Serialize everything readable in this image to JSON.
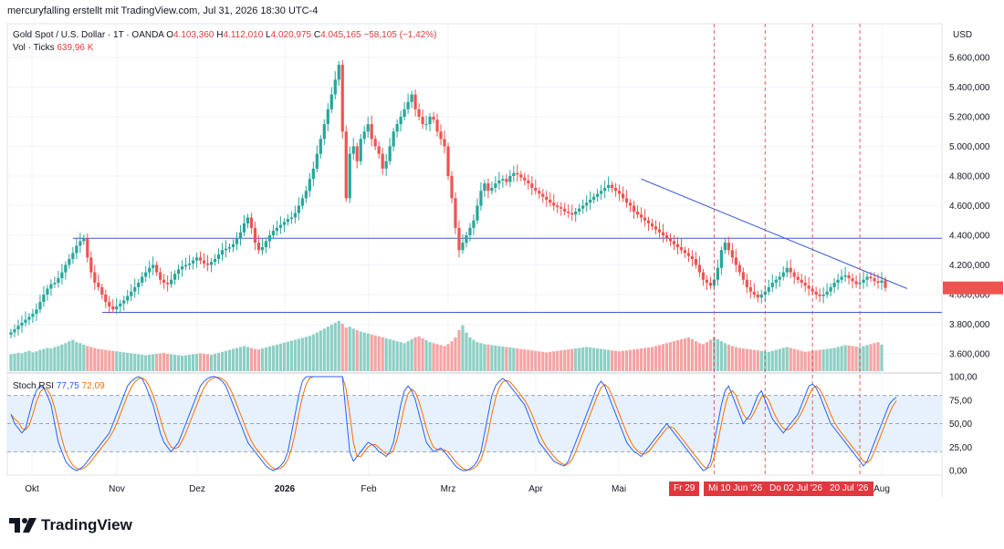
{
  "credit": "mercuryfalling erstellt mit TradingView.com, Jul 31, 2026 18:30 UTC-4",
  "header": {
    "symbol": "Gold Spot / U.S. Dollar · 1T · OANDA",
    "open_label": "O",
    "open": "4.103,360",
    "high_label": "H",
    "high": "4.112,010",
    "low_label": "L",
    "low": "4.020,975",
    "close_label": "C",
    "close": "4.045,165",
    "change": "−58,105 (−1,42%)",
    "vol_label": "Vol · Ticks",
    "vol_value": "639,96 K"
  },
  "rsi": {
    "label": "Stoch RSI",
    "k": "77,75",
    "d": "72,09",
    "axis": [
      "100,00",
      "75,00",
      "50,00",
      "25,00",
      "0,00"
    ]
  },
  "currency": "USD",
  "date_flags": [
    "Fr 29",
    "Mi 10 Jun '26",
    "Do 02 Jul '26",
    "20 Jul '26"
  ],
  "brand": "TradingView",
  "colors": {
    "up": "#26a69a",
    "down": "#ef5350",
    "up_vol": "#8ccfc4",
    "down_vol": "#f5a3a3",
    "k_line": "#2962ff",
    "d_line": "#ff6d00",
    "trend_line": "#3d5ccf",
    "rsi_band": "#e6f1fd",
    "cursor_line": "#e0383e"
  },
  "chart_data": {
    "type": "candlestick",
    "price_axis": [
      "5.600,000",
      "5.400,000",
      "5.200,000",
      "5.000,000",
      "4.800,000",
      "4.600,000",
      "4.400,000",
      "4.200,000",
      "4.000,000",
      "3.800,000",
      "3.600,000"
    ],
    "x_labels": [
      "Okt",
      "Nov",
      "Dez",
      "2026",
      "Feb",
      "Mrz",
      "Apr",
      "Mai",
      "Aug"
    ],
    "horizontal_levels": [
      4380,
      3880
    ],
    "trendline": {
      "from": {
        "i": 173,
        "price": 4780
      },
      "to": {
        "i": 246,
        "price": 4040
      }
    },
    "cursor_markers_i": [
      193,
      207,
      220,
      233
    ],
    "closes": [
      3745,
      3765,
      3790,
      3810,
      3830,
      3850,
      3870,
      3900,
      3950,
      4000,
      4040,
      4070,
      4080,
      4110,
      4150,
      4200,
      4240,
      4280,
      4330,
      4360,
      4380,
      4250,
      4150,
      4080,
      4050,
      4000,
      3950,
      3920,
      3900,
      3920,
      3940,
      3960,
      3990,
      4020,
      4050,
      4080,
      4120,
      4150,
      4180,
      4200,
      4150,
      4100,
      4080,
      4070,
      4100,
      4140,
      4170,
      4190,
      4200,
      4210,
      4230,
      4250,
      4230,
      4210,
      4200,
      4220,
      4240,
      4270,
      4300,
      4310,
      4320,
      4340,
      4380,
      4420,
      4480,
      4520,
      4450,
      4350,
      4300,
      4320,
      4360,
      4400,
      4430,
      4450,
      4470,
      4490,
      4510,
      4520,
      4550,
      4600,
      4650,
      4700,
      4780,
      4850,
      4950,
      5050,
      5150,
      5250,
      5350,
      5450,
      5550,
      5100,
      4650,
      4950,
      5000,
      4900,
      5050,
      5100,
      5150,
      5050,
      5000,
      4950,
      4850,
      4900,
      5000,
      5100,
      5150,
      5200,
      5250,
      5300,
      5350,
      5250,
      5200,
      5150,
      5150,
      5200,
      5180,
      5100,
      5050,
      5000,
      4800,
      4650,
      4450,
      4300,
      4350,
      4400,
      4450,
      4500,
      4600,
      4700,
      4750,
      4700,
      4720,
      4750,
      4770,
      4780,
      4760,
      4800,
      4820,
      4810,
      4790,
      4770,
      4750,
      4720,
      4700,
      4680,
      4660,
      4640,
      4620,
      4600,
      4590,
      4580,
      4560,
      4550,
      4540,
      4560,
      4580,
      4600,
      4620,
      4640,
      4660,
      4680,
      4700,
      4720,
      4740,
      4720,
      4700,
      4680,
      4650,
      4620,
      4600,
      4560,
      4540,
      4520,
      4500,
      4480,
      4460,
      4440,
      4420,
      4400,
      4380,
      4360,
      4340,
      4320,
      4300,
      4280,
      4260,
      4240,
      4200,
      4150,
      4100,
      4080,
      4060,
      4100,
      4180,
      4300,
      4350,
      4300,
      4250,
      4200,
      4150,
      4100,
      4050,
      4020,
      4000,
      3980,
      4000,
      4020,
      4050,
      4080,
      4100,
      4120,
      4150,
      4180,
      4150,
      4120,
      4100,
      4080,
      4060,
      4040,
      4020,
      4000,
      3990,
      4000,
      4020,
      4050,
      4080,
      4100,
      4120,
      4130,
      4110,
      4090,
      4070,
      4080,
      4100,
      4120,
      4110,
      4090,
      4080,
      4095,
      4045
    ],
    "volumes": [
      35,
      36,
      38,
      37,
      40,
      42,
      39,
      41,
      44,
      46,
      48,
      47,
      50,
      52,
      55,
      58,
      62,
      65,
      60,
      58,
      55,
      52,
      50,
      48,
      46,
      45,
      44,
      43,
      42,
      41,
      40,
      39,
      38,
      37,
      36,
      35,
      34,
      33,
      34,
      35,
      36,
      37,
      38,
      36,
      35,
      34,
      33,
      32,
      33,
      34,
      35,
      36,
      37,
      36,
      35,
      34,
      36,
      38,
      40,
      42,
      44,
      46,
      48,
      50,
      52,
      50,
      48,
      46,
      45,
      47,
      49,
      51,
      53,
      55,
      57,
      59,
      61,
      63,
      65,
      67,
      69,
      71,
      73,
      76,
      80,
      84,
      88,
      92,
      96,
      100,
      104,
      98,
      90,
      92,
      88,
      85,
      82,
      80,
      78,
      76,
      74,
      72,
      70,
      68,
      66,
      64,
      62,
      60,
      58,
      62,
      66,
      70,
      72,
      68,
      64,
      60,
      58,
      56,
      54,
      52,
      56,
      62,
      70,
      85,
      95,
      80,
      70,
      65,
      60,
      58,
      56,
      55,
      54,
      53,
      52,
      51,
      50,
      49,
      48,
      47,
      46,
      45,
      44,
      43,
      42,
      41,
      40,
      39,
      40,
      41,
      42,
      43,
      44,
      45,
      46,
      47,
      48,
      49,
      50,
      49,
      48,
      47,
      46,
      45,
      44,
      43,
      42,
      41,
      42,
      43,
      44,
      45,
      46,
      47,
      48,
      49,
      50,
      52,
      54,
      56,
      58,
      60,
      62,
      64,
      66,
      68,
      70,
      66,
      62,
      58,
      56,
      60,
      65,
      70,
      66,
      62,
      58,
      55,
      52,
      50,
      48,
      47,
      46,
      45,
      44,
      43,
      42,
      41,
      40,
      42,
      44,
      46,
      48,
      50,
      48,
      46,
      44,
      42,
      40,
      41,
      42,
      43,
      44,
      45,
      46,
      47,
      48,
      50,
      52,
      54,
      53,
      52,
      51,
      50,
      52,
      54,
      56,
      58,
      60,
      55
    ],
    "stoch_k": [
      60,
      50,
      45,
      40,
      45,
      60,
      75,
      85,
      90,
      88,
      80,
      70,
      50,
      30,
      20,
      10,
      5,
      2,
      0,
      2,
      5,
      10,
      15,
      20,
      25,
      30,
      35,
      40,
      50,
      60,
      70,
      80,
      90,
      95,
      98,
      100,
      98,
      90,
      80,
      70,
      55,
      40,
      30,
      25,
      20,
      25,
      30,
      40,
      50,
      60,
      70,
      80,
      90,
      95,
      98,
      100,
      100,
      98,
      95,
      90,
      80,
      70,
      60,
      50,
      40,
      30,
      25,
      20,
      15,
      10,
      5,
      2,
      0,
      2,
      5,
      10,
      20,
      40,
      60,
      80,
      95,
      100,
      100,
      100,
      100,
      100,
      100,
      100,
      100,
      100,
      100,
      100,
      60,
      20,
      10,
      15,
      20,
      25,
      30,
      28,
      25,
      20,
      18,
      15,
      20,
      30,
      50,
      70,
      85,
      90,
      85,
      75,
      60,
      45,
      30,
      25,
      20,
      22,
      24,
      20,
      15,
      10,
      5,
      2,
      0,
      0,
      2,
      5,
      10,
      20,
      40,
      60,
      80,
      90,
      95,
      98,
      95,
      90,
      85,
      80,
      75,
      70,
      60,
      50,
      40,
      30,
      25,
      20,
      15,
      10,
      8,
      6,
      5,
      10,
      20,
      30,
      40,
      50,
      60,
      70,
      80,
      90,
      95,
      90,
      80,
      70,
      60,
      50,
      40,
      30,
      25,
      20,
      18,
      15,
      20,
      25,
      30,
      35,
      40,
      45,
      50,
      45,
      40,
      35,
      30,
      25,
      20,
      15,
      10,
      5,
      0,
      2,
      10,
      30,
      50,
      70,
      85,
      90,
      80,
      70,
      60,
      50,
      55,
      60,
      70,
      80,
      85,
      75,
      65,
      55,
      50,
      45,
      40,
      45,
      50,
      55,
      60,
      70,
      80,
      90,
      92,
      88,
      80,
      70,
      60,
      50,
      45,
      40,
      35,
      30,
      25,
      20,
      15,
      10,
      5,
      10,
      20,
      30,
      40,
      50,
      60,
      70,
      75,
      78
    ]
  }
}
